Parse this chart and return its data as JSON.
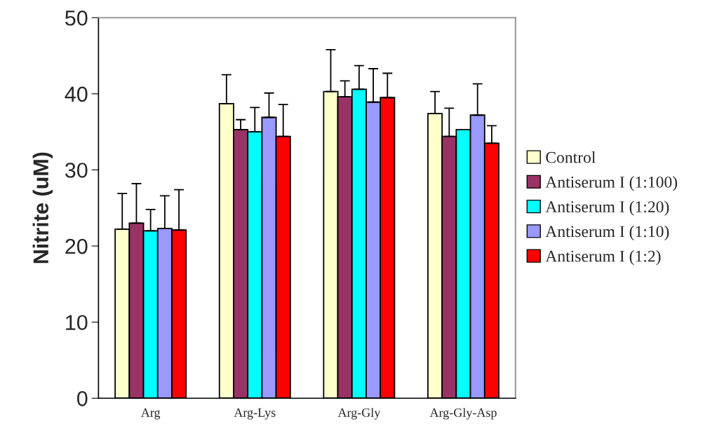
{
  "chart_data": {
    "type": "bar",
    "ylabel": "Nitrite (uM)",
    "categories": [
      "Arg",
      "Arg-Lys",
      "Arg-Gly",
      "Arg-Gly-Asp"
    ],
    "series": [
      {
        "name": "Control",
        "color": "#ffffcc",
        "values": [
          22.2,
          38.7,
          40.3,
          37.4
        ],
        "errors": [
          [
            22.2,
            26.9
          ],
          [
            38.7,
            42.5
          ],
          [
            40.3,
            45.8
          ],
          [
            37.4,
            40.3
          ]
        ]
      },
      {
        "name": "Antiserum I (1:100)",
        "color": "#993366",
        "values": [
          23.0,
          35.3,
          39.6,
          34.4
        ],
        "errors": [
          [
            23.0,
            28.2
          ],
          [
            35.3,
            36.6
          ],
          [
            39.6,
            41.7
          ],
          [
            34.4,
            38.1
          ]
        ]
      },
      {
        "name": "Antiserum I (1:20)",
        "color": "#00ffff",
        "values": [
          22.0,
          35.0,
          40.6,
          35.3
        ],
        "errors": [
          [
            22.0,
            24.8
          ],
          [
            35.0,
            38.2
          ],
          [
            40.6,
            43.7
          ],
          null
        ]
      },
      {
        "name": "Antiserum I (1:10)",
        "color": "#9999ff",
        "values": [
          22.3,
          36.9,
          38.9,
          37.2
        ],
        "errors": [
          [
            22.3,
            26.6
          ],
          [
            36.9,
            40.1
          ],
          [
            38.9,
            43.3
          ],
          [
            37.2,
            41.3
          ]
        ]
      },
      {
        "name": "Antiserum I (1:2)",
        "color": "#ff0000",
        "values": [
          22.1,
          34.4,
          39.5,
          33.5
        ],
        "errors": [
          [
            22.1,
            27.4
          ],
          [
            34.4,
            38.6
          ],
          [
            39.5,
            42.7
          ],
          [
            33.5,
            35.8
          ]
        ]
      }
    ],
    "ylim": [
      0,
      50
    ],
    "yticks": [
      0,
      10,
      20,
      30,
      40,
      50
    ],
    "grid": false,
    "legend": "right"
  }
}
